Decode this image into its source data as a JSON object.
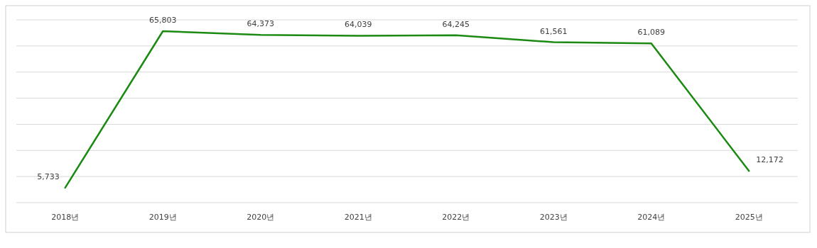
{
  "chart_data": {
    "type": "line",
    "categories": [
      "2018년",
      "2019년",
      "2020년",
      "2021년",
      "2022년",
      "2023년",
      "2024년",
      "2025년"
    ],
    "series": [
      {
        "color": "#1a8a12",
        "values": [
          5733,
          65803,
          64373,
          64039,
          64245,
          61561,
          61089,
          12172
        ],
        "value_labels": [
          "5,733",
          "65,803",
          "64,373",
          "64,039",
          "64,245",
          "61,561",
          "61,089",
          "12,172"
        ]
      }
    ],
    "tick_labels": "x",
    "grid": "y",
    "marker": "none",
    "line_style": "solid"
  }
}
